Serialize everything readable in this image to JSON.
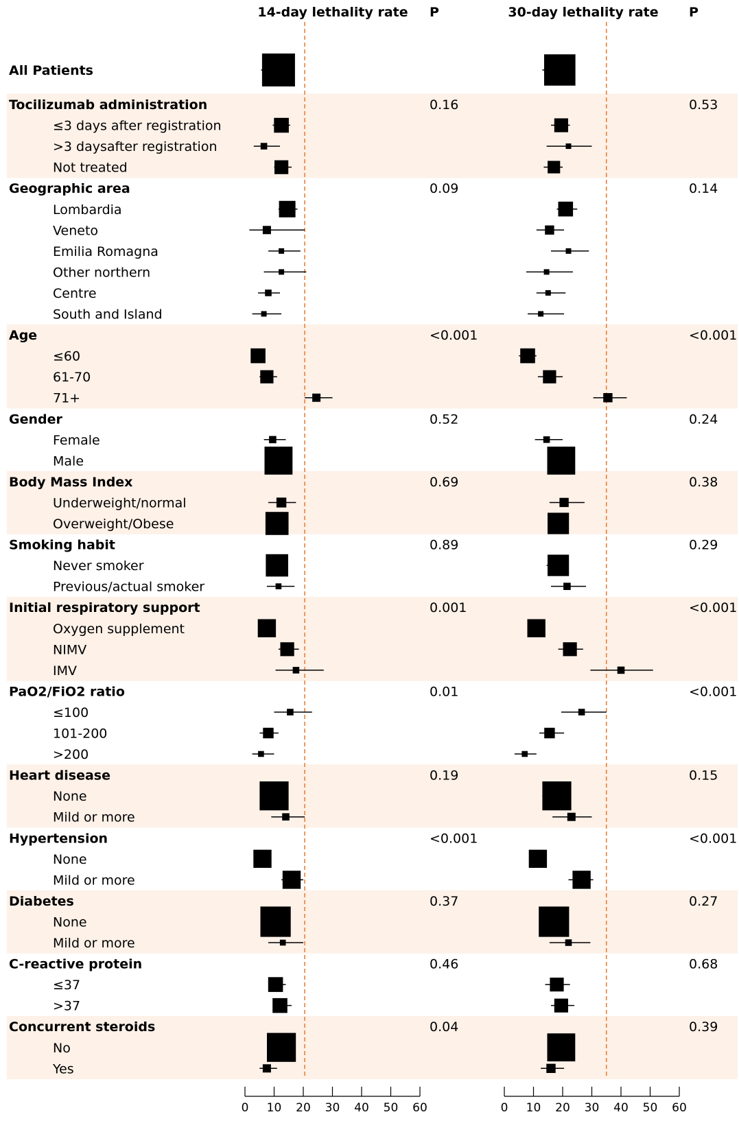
{
  "chart_data": {
    "type": "forest",
    "panels": [
      {
        "title": "14-day lethality rate",
        "p_header": "P",
        "xlim": [
          0,
          60
        ],
        "ticks": [
          0,
          10,
          20,
          30,
          40,
          50,
          60
        ],
        "reference_line": 20.5
      },
      {
        "title": "30-day lethality rate",
        "p_header": "P",
        "xlim": [
          0,
          60
        ],
        "ticks": [
          0,
          10,
          20,
          30,
          40,
          50,
          60
        ],
        "reference_line": 35
      }
    ],
    "rows": [
      {
        "label": "All Patients",
        "level": 0,
        "shade": false,
        "est": [
          [
            11.5,
            5.5,
            16.5,
            1.0
          ],
          [
            19,
            13,
            24,
            0.95
          ]
        ],
        "p": [
          "",
          ""
        ]
      },
      {
        "label": "Tocilizumab administration",
        "level": 0,
        "shade": true,
        "p": [
          "0.16",
          "0.53"
        ]
      },
      {
        "label": "≤3 days after registration",
        "level": 1,
        "shade": true,
        "est": [
          [
            12.5,
            9.5,
            15.5,
            0.45
          ],
          [
            19.5,
            16,
            22.5,
            0.42
          ]
        ],
        "p": [
          "",
          ""
        ]
      },
      {
        "label": ">3 daysafter registration",
        "level": 1,
        "shade": true,
        "est": [
          [
            6.5,
            3,
            12,
            0.2
          ],
          [
            22,
            14.5,
            30,
            0.15
          ]
        ],
        "p": [
          "",
          ""
        ]
      },
      {
        "label": "Not treated",
        "level": 1,
        "shade": true,
        "est": [
          [
            12.5,
            10,
            16,
            0.42
          ],
          [
            17,
            13.5,
            20,
            0.38
          ]
        ],
        "p": [
          "",
          ""
        ]
      },
      {
        "label": "Geographic area",
        "level": 0,
        "shade": false,
        "p": [
          "0.09",
          "0.14"
        ]
      },
      {
        "label": "Lombardia",
        "level": 1,
        "shade": false,
        "est": [
          [
            14.5,
            11.5,
            18,
            0.5
          ],
          [
            21,
            18,
            25,
            0.45
          ]
        ],
        "p": [
          "",
          ""
        ]
      },
      {
        "label": "Veneto",
        "level": 1,
        "shade": false,
        "est": [
          [
            7.5,
            1.5,
            20.5,
            0.25
          ],
          [
            15.5,
            11,
            20.5,
            0.28
          ]
        ],
        "p": [
          "",
          ""
        ]
      },
      {
        "label": "Emilia Romagna",
        "level": 1,
        "shade": false,
        "est": [
          [
            12.5,
            8,
            19,
            0.15
          ],
          [
            22,
            16,
            29,
            0.12
          ]
        ],
        "p": [
          "",
          ""
        ]
      },
      {
        "label": "Other northern",
        "level": 1,
        "shade": false,
        "est": [
          [
            12.5,
            6.5,
            21,
            0.12
          ],
          [
            14.5,
            7.5,
            23.5,
            0.12
          ]
        ],
        "p": [
          "",
          ""
        ]
      },
      {
        "label": "Centre",
        "level": 1,
        "shade": false,
        "est": [
          [
            8,
            4.5,
            12,
            0.2
          ],
          [
            15,
            11,
            21,
            0.15
          ]
        ],
        "p": [
          "",
          ""
        ]
      },
      {
        "label": "South and Island",
        "level": 1,
        "shade": false,
        "est": [
          [
            6.5,
            2.5,
            12.5,
            0.12
          ],
          [
            12.5,
            8,
            20.5,
            0.1
          ]
        ],
        "p": [
          "",
          ""
        ]
      },
      {
        "label": "Age",
        "level": 0,
        "shade": true,
        "p": [
          "<0.001",
          "<0.001"
        ]
      },
      {
        "label": "≤60",
        "level": 1,
        "shade": true,
        "est": [
          [
            4.5,
            2,
            7,
            0.45
          ],
          [
            8,
            5,
            11,
            0.45
          ]
        ],
        "p": [
          "",
          ""
        ]
      },
      {
        "label": "61-70",
        "level": 1,
        "shade": true,
        "est": [
          [
            7.5,
            5,
            11,
            0.4
          ],
          [
            15.5,
            11.5,
            20,
            0.4
          ]
        ],
        "p": [
          "",
          ""
        ]
      },
      {
        "label": "71+",
        "level": 1,
        "shade": true,
        "est": [
          [
            24.5,
            20.5,
            30,
            0.25
          ],
          [
            35.5,
            30.5,
            42,
            0.28
          ]
        ],
        "p": [
          "",
          ""
        ]
      },
      {
        "label": "Gender",
        "level": 0,
        "shade": false,
        "p": [
          "0.52",
          "0.24"
        ]
      },
      {
        "label": "Female",
        "level": 1,
        "shade": false,
        "est": [
          [
            9.5,
            6.5,
            14,
            0.22
          ],
          [
            14.5,
            10.5,
            20,
            0.2
          ]
        ],
        "p": [
          "",
          ""
        ]
      },
      {
        "label": "Male",
        "level": 1,
        "shade": false,
        "est": [
          [
            11.5,
            7,
            16,
            0.85
          ],
          [
            19.5,
            15,
            24,
            0.85
          ]
        ],
        "p": [
          "",
          ""
        ]
      },
      {
        "label": "Body Mass Index",
        "level": 0,
        "shade": true,
        "p": [
          "0.69",
          "0.38"
        ]
      },
      {
        "label": "Underweight/normal",
        "level": 1,
        "shade": true,
        "est": [
          [
            12.5,
            8,
            17.5,
            0.3
          ],
          [
            20.5,
            15.5,
            27.5,
            0.28
          ]
        ],
        "p": [
          "",
          ""
        ]
      },
      {
        "label": "Overweight/Obese",
        "level": 1,
        "shade": true,
        "est": [
          [
            11,
            7.5,
            14.5,
            0.7
          ],
          [
            18.5,
            15,
            22,
            0.65
          ]
        ],
        "p": [
          "",
          ""
        ]
      },
      {
        "label": "Smoking habit",
        "level": 0,
        "shade": false,
        "p": [
          "0.89",
          "0.29"
        ]
      },
      {
        "label": "Never smoker",
        "level": 1,
        "shade": false,
        "est": [
          [
            11,
            7.5,
            14,
            0.68
          ],
          [
            18.5,
            14.5,
            22,
            0.65
          ]
        ],
        "p": [
          "",
          ""
        ]
      },
      {
        "label": "Previous/actual smoker",
        "level": 1,
        "shade": false,
        "est": [
          [
            11.5,
            7.5,
            17,
            0.18
          ],
          [
            21.5,
            16,
            28,
            0.22
          ]
        ],
        "p": [
          "",
          ""
        ]
      },
      {
        "label": "Initial respiratory support",
        "level": 0,
        "shade": true,
        "p": [
          "0.001",
          "<0.001"
        ]
      },
      {
        "label": "Oxygen supplement",
        "level": 1,
        "shade": true,
        "est": [
          [
            7.5,
            5,
            10.5,
            0.55
          ],
          [
            11,
            8,
            14,
            0.55
          ]
        ],
        "p": [
          "",
          ""
        ]
      },
      {
        "label": "NIMV",
        "level": 1,
        "shade": true,
        "est": [
          [
            14.5,
            11.5,
            18.5,
            0.42
          ],
          [
            22.5,
            18.5,
            27,
            0.42
          ]
        ],
        "p": [
          "",
          ""
        ]
      },
      {
        "label": "IMV",
        "level": 1,
        "shade": true,
        "est": [
          [
            17.5,
            10.5,
            27,
            0.2
          ],
          [
            40,
            29.5,
            51,
            0.22
          ]
        ],
        "p": [
          "",
          ""
        ]
      },
      {
        "label": "PaO2/FiO2 ratio",
        "level": 0,
        "shade": false,
        "p": [
          "0.01",
          "<0.001"
        ]
      },
      {
        "label": "≤100",
        "level": 1,
        "shade": false,
        "est": [
          [
            15.5,
            10,
            23,
            0.2
          ],
          [
            26.5,
            19.5,
            35,
            0.2
          ]
        ],
        "p": [
          "",
          ""
        ]
      },
      {
        "label": "101-200",
        "level": 1,
        "shade": false,
        "est": [
          [
            8,
            5,
            11.5,
            0.32
          ],
          [
            15.5,
            12,
            20.5,
            0.32
          ]
        ],
        "p": [
          "",
          ""
        ]
      },
      {
        "label": ">200",
        "level": 1,
        "shade": false,
        "est": [
          [
            5.5,
            2.5,
            10,
            0.18
          ],
          [
            7,
            3.5,
            11,
            0.18
          ]
        ],
        "p": [
          "",
          ""
        ]
      },
      {
        "label": "Heart disease",
        "level": 0,
        "shade": true,
        "p": [
          "0.19",
          "0.15"
        ]
      },
      {
        "label": "None",
        "level": 1,
        "shade": true,
        "est": [
          [
            10,
            5.5,
            14,
            0.88
          ],
          [
            18,
            13,
            22,
            0.88
          ]
        ],
        "p": [
          "",
          ""
        ]
      },
      {
        "label": "Mild or more",
        "level": 1,
        "shade": true,
        "est": [
          [
            14,
            9,
            20.5,
            0.22
          ],
          [
            23,
            16.5,
            30,
            0.25
          ]
        ],
        "p": [
          "",
          ""
        ]
      },
      {
        "label": "Hypertension",
        "level": 0,
        "shade": false,
        "p": [
          "<0.001",
          "<0.001"
        ]
      },
      {
        "label": "None",
        "level": 1,
        "shade": false,
        "est": [
          [
            6,
            3.5,
            9,
            0.55
          ],
          [
            11.5,
            9,
            14.5,
            0.55
          ]
        ],
        "p": [
          "",
          ""
        ]
      },
      {
        "label": "Mild or more",
        "level": 1,
        "shade": false,
        "est": [
          [
            16,
            12.5,
            20,
            0.55
          ],
          [
            26.5,
            22,
            30.5,
            0.55
          ]
        ],
        "p": [
          "",
          ""
        ]
      },
      {
        "label": "Diabetes",
        "level": 0,
        "shade": true,
        "p": [
          "0.37",
          "0.27"
        ]
      },
      {
        "label": "None",
        "level": 1,
        "shade": true,
        "est": [
          [
            10.5,
            5.5,
            15,
            0.92
          ],
          [
            17,
            12.5,
            22,
            0.92
          ]
        ],
        "p": [
          "",
          ""
        ]
      },
      {
        "label": "Mild or more",
        "level": 1,
        "shade": true,
        "est": [
          [
            13,
            8,
            20,
            0.18
          ],
          [
            22,
            15.5,
            29.5,
            0.2
          ]
        ],
        "p": [
          "",
          ""
        ]
      },
      {
        "label": "C-reactive protein",
        "level": 0,
        "shade": false,
        "p": [
          "0.46",
          "0.68"
        ]
      },
      {
        "label": "≤37",
        "level": 1,
        "shade": false,
        "est": [
          [
            10.5,
            8,
            14,
            0.45
          ],
          [
            18,
            14,
            22.5,
            0.42
          ]
        ],
        "p": [
          "",
          ""
        ]
      },
      {
        "label": ">37",
        "level": 1,
        "shade": false,
        "est": [
          [
            12,
            9.5,
            16,
            0.45
          ],
          [
            19.5,
            16,
            24,
            0.42
          ]
        ],
        "p": [
          "",
          ""
        ]
      },
      {
        "label": "Concurrent steroids",
        "level": 0,
        "shade": true,
        "p": [
          "0.04",
          "0.39"
        ]
      },
      {
        "label": "No",
        "level": 1,
        "shade": true,
        "est": [
          [
            12.5,
            8,
            17,
            0.88
          ],
          [
            19.5,
            15,
            23,
            0.85
          ]
        ],
        "p": [
          "",
          ""
        ]
      },
      {
        "label": "Yes",
        "level": 1,
        "shade": true,
        "est": [
          [
            7.5,
            5,
            11,
            0.25
          ],
          [
            16,
            12.5,
            20.5,
            0.28
          ]
        ],
        "p": [
          "",
          ""
        ]
      }
    ],
    "colors": {
      "shade": "#fdf1e8",
      "marker": "#000000",
      "reference_line": "#e8803a"
    }
  }
}
